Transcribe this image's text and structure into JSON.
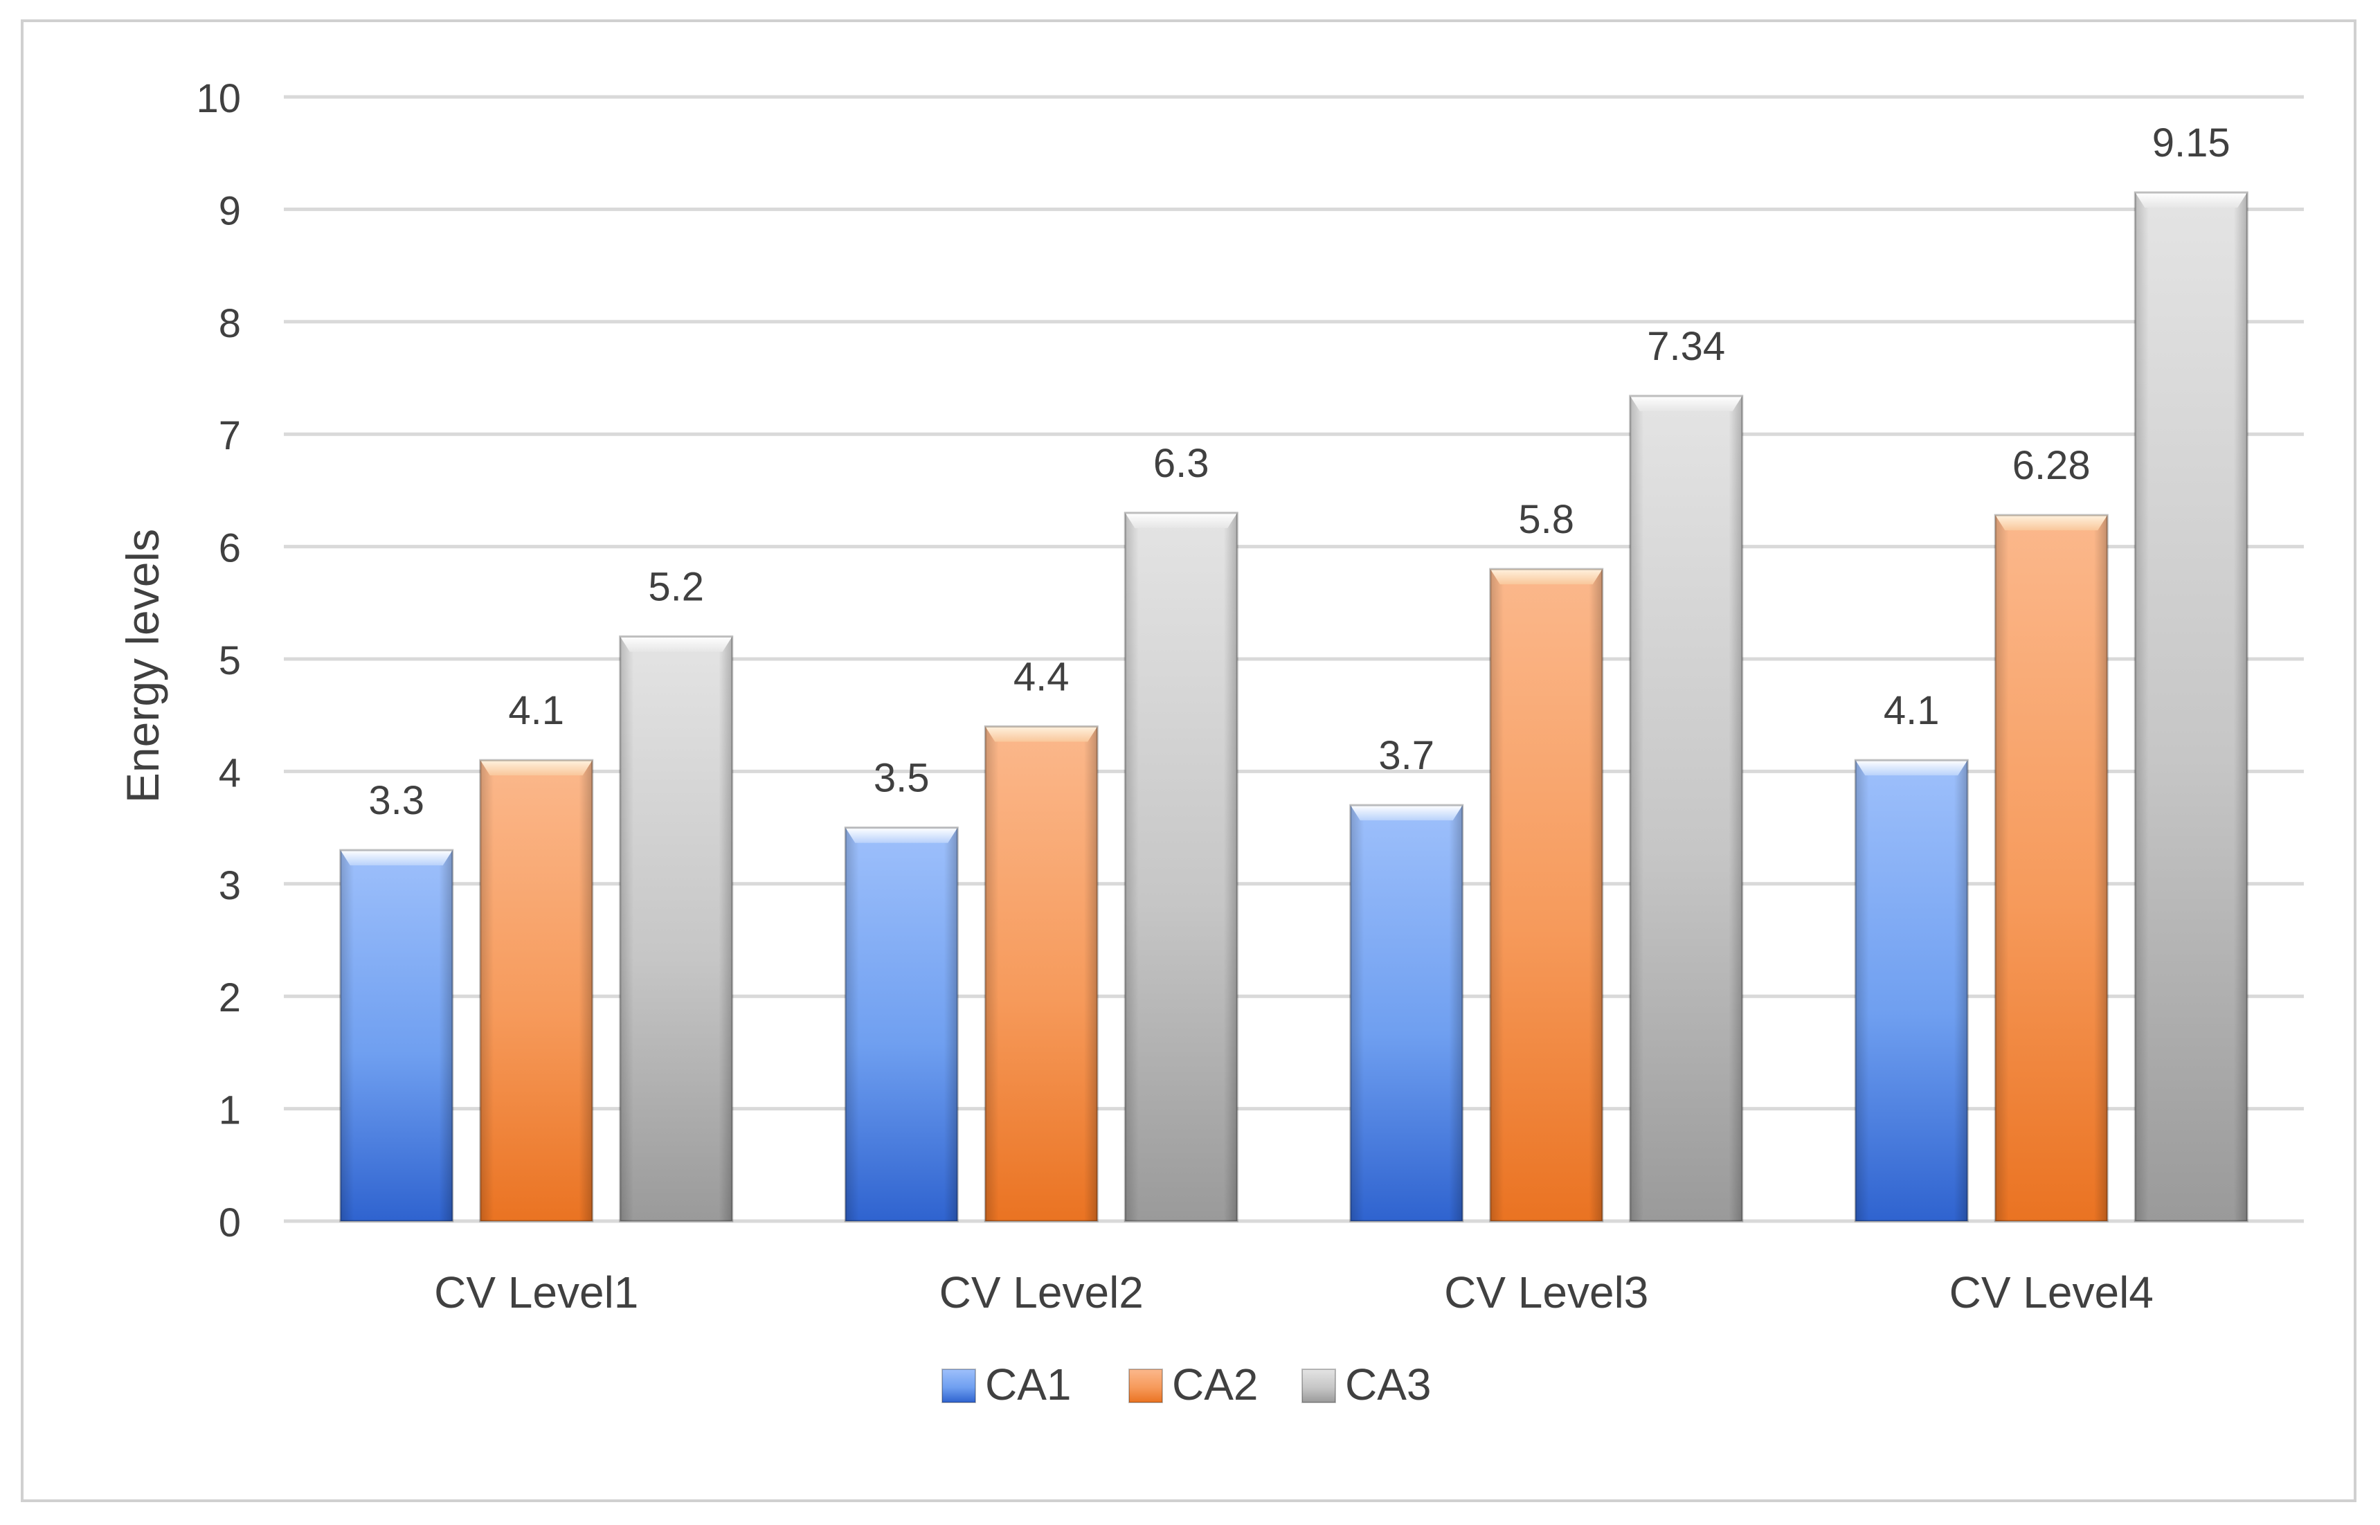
{
  "chart_data": {
    "type": "bar",
    "title": "",
    "xlabel": "",
    "ylabel": "Energy levels",
    "ylim": [
      0,
      10
    ],
    "yticks": [
      "0",
      "1",
      "2",
      "3",
      "4",
      "5",
      "6",
      "7",
      "8",
      "9",
      "10"
    ],
    "grid": true,
    "legend_position": "bottom-center",
    "categories": [
      "CV Level1",
      "CV Level2",
      "CV Level3",
      "CV Level4"
    ],
    "series": [
      {
        "name": "CA1",
        "values": [
          3.3,
          3.5,
          3.7,
          4.1
        ],
        "labels": [
          "3.3",
          "3.5",
          "3.7",
          "4.1"
        ],
        "color": "#4472c4"
      },
      {
        "name": "CA2",
        "values": [
          4.1,
          4.4,
          5.8,
          6.28
        ],
        "labels": [
          "4.1",
          "4.4",
          "5.8",
          "6.28"
        ],
        "color": "#ed7d31"
      },
      {
        "name": "CA3",
        "values": [
          5.2,
          6.3,
          7.34,
          9.15
        ],
        "labels": [
          "5.2",
          "6.3",
          "7.34",
          "9.15"
        ],
        "color": "#a5a5a5"
      }
    ]
  }
}
